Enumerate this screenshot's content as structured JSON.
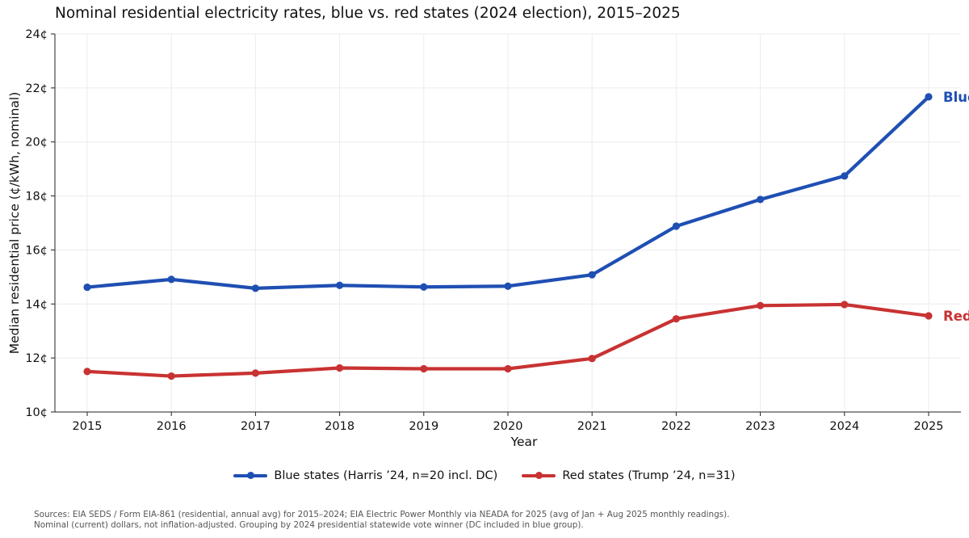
{
  "chart_data": {
    "type": "line",
    "title": "Nominal residential electricity rates, blue vs. red states (2024 election), 2015–2025",
    "xlabel": "Year",
    "ylabel": "Median residential price (¢/kWh, nominal)",
    "x": [
      2015,
      2016,
      2017,
      2018,
      2019,
      2020,
      2021,
      2022,
      2023,
      2024,
      2025
    ],
    "ylim": [
      10,
      24
    ],
    "yticks": [
      "10¢",
      "12¢",
      "14¢",
      "16¢",
      "18¢",
      "20¢",
      "22¢",
      "24¢"
    ],
    "ytick_values": [
      10,
      12,
      14,
      16,
      18,
      20,
      22,
      24
    ],
    "grid": true,
    "legend_position": "bottom-center",
    "series": [
      {
        "name": "Blue states (Harris ’24, n=20 incl. DC)",
        "end_label": "Blue",
        "color": "#1f4fb3",
        "values": [
          14.62,
          14.91,
          14.58,
          14.69,
          14.63,
          14.66,
          15.08,
          16.88,
          17.87,
          18.74,
          21.67
        ]
      },
      {
        "name": "Red states (Trump ’24, n=31)",
        "end_label": "Red",
        "color": "#c93232",
        "values": [
          11.5,
          11.33,
          11.44,
          11.63,
          11.6,
          11.6,
          11.98,
          13.45,
          13.94,
          13.98,
          13.56
        ]
      }
    ]
  },
  "sources": {
    "line1": "Sources: EIA SEDS / Form EIA-861 (residential, annual avg) for 2015–2024; EIA Electric Power Monthly via NEADA for 2025 (avg of Jan + Aug 2025 monthly readings).",
    "line2": "Nominal (current) dollars, not inflation-adjusted. Grouping by 2024 presidential statewide vote winner (DC included in blue group)."
  }
}
